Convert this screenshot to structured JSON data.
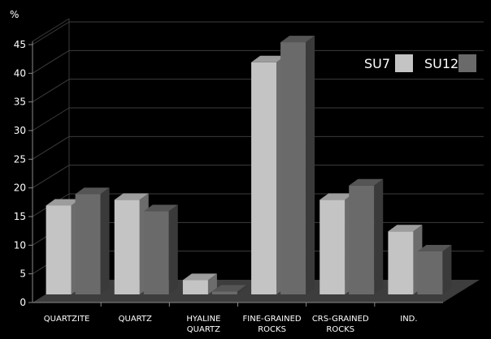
{
  "chart_data": {
    "type": "bar",
    "style": "3d-clustered",
    "ylabel": "%",
    "ylim": [
      0,
      45
    ],
    "yticks": [
      0,
      5,
      10,
      15,
      20,
      25,
      30,
      35,
      40,
      45
    ],
    "grid": true,
    "legend_position": "top-right",
    "categories": [
      [
        "QUARTZITE"
      ],
      [
        "QUARTZ"
      ],
      [
        "HYALINE",
        "QUARTZ"
      ],
      [
        "FINE-GRAINED",
        "ROCKS"
      ],
      [
        "CRS-GRAINED",
        "ROCKS"
      ],
      [
        "IND."
      ]
    ],
    "series": [
      {
        "name": "SU7",
        "values": [
          15.5,
          16.5,
          2.5,
          40.5,
          16.5,
          11.0
        ],
        "color": "#c4c4c4"
      },
      {
        "name": "SU12",
        "values": [
          17.5,
          14.5,
          0.5,
          44.0,
          19.0,
          7.5
        ],
        "color": "#6a6a6a"
      }
    ]
  }
}
